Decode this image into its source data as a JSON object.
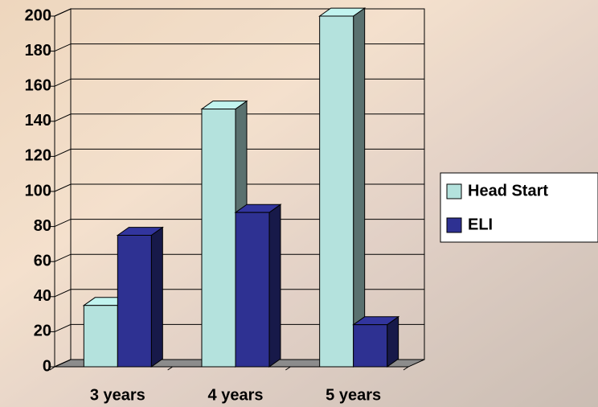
{
  "chart_data": {
    "type": "bar3d",
    "categories": [
      "3 years",
      "4 years",
      "5 years"
    ],
    "series": [
      {
        "name": "Head Start",
        "color": "#b4e2dd",
        "values": [
          35,
          147,
          200
        ]
      },
      {
        "name": "ELI",
        "color": "#2e3192",
        "values": [
          75,
          88,
          24
        ]
      }
    ],
    "ylim": [
      0,
      200
    ],
    "yticks": [
      0,
      20,
      40,
      60,
      80,
      100,
      120,
      140,
      160,
      180,
      200
    ],
    "grid": true,
    "legend": "right"
  }
}
